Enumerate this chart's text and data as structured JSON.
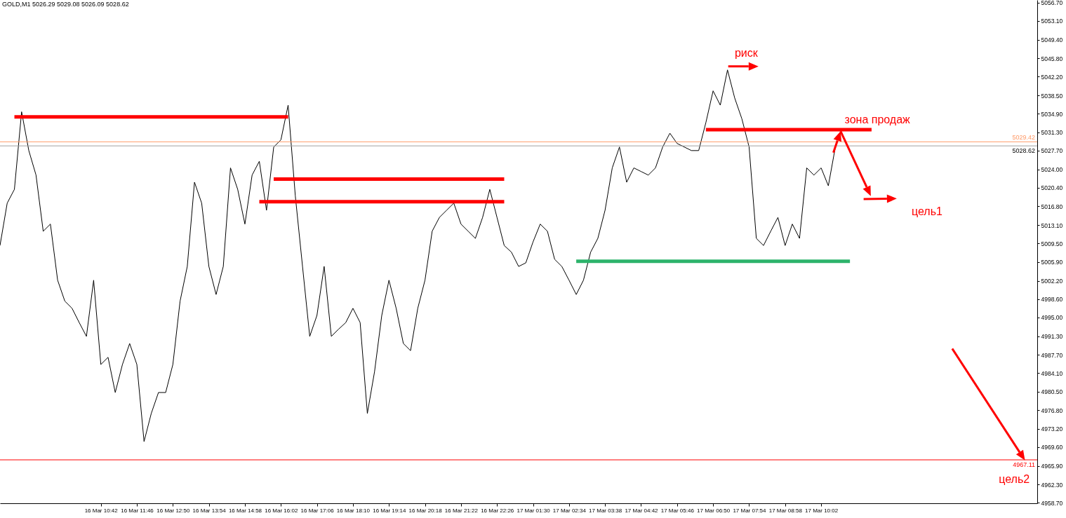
{
  "chart_data": {
    "type": "line",
    "title": "GOLD,M1  5026.29 5029.08 5026.09 5028.62",
    "categories": [
      null,
      null,
      null,
      null,
      null,
      null,
      null,
      null,
      null,
      null,
      null,
      null,
      null,
      null,
      "16 Mar 10:42",
      null,
      null,
      null,
      null,
      "16 Mar 11:46",
      null,
      null,
      null,
      null,
      "16 Mar 12:50",
      null,
      null,
      null,
      null,
      "16 Mar 13:54",
      null,
      null,
      null,
      null,
      "16 Mar 14:58",
      null,
      null,
      null,
      null,
      "16 Mar 16:02",
      null,
      null,
      null,
      null,
      "16 Mar 17:06",
      null,
      null,
      null,
      null,
      "16 Mar 18:10",
      null,
      null,
      null,
      null,
      "16 Mar 19:14",
      null,
      null,
      null,
      null,
      "16 Mar 20:18",
      null,
      null,
      null,
      null,
      "16 Mar 21:22",
      null,
      null,
      null,
      null,
      "16 Mar 22:26",
      null,
      null,
      null,
      null,
      "17 Mar 01:30",
      null,
      null,
      null,
      null,
      "17 Mar 02:34",
      null,
      null,
      null,
      null,
      "17 Mar 03:38",
      null,
      null,
      null,
      null,
      "17 Mar 04:42",
      null,
      null,
      null,
      null,
      "17 Mar 05:46",
      null,
      null,
      null,
      null,
      "17 Mar 06:50",
      null,
      null,
      null,
      null,
      "17 Mar 07:54",
      null,
      null,
      null,
      null,
      "17 Mar 08:58",
      null,
      null,
      null,
      null,
      "17 Mar 10:02",
      null,
      null,
      null,
      null,
      null,
      null,
      null,
      null,
      null,
      null,
      null,
      null,
      null,
      null,
      null,
      null,
      null,
      null,
      null,
      null,
      null,
      null,
      null,
      null,
      null,
      null,
      null,
      null,
      null,
      null
    ],
    "ylim": [
      4958.6,
      5057.2
    ],
    "yticks": [
      {
        "value": 5056.7,
        "label": "5056.70"
      },
      {
        "value": 5053.1,
        "label": "5053.10"
      },
      {
        "value": 5049.4,
        "label": "5049.40"
      },
      {
        "value": 5045.8,
        "label": "5045.80"
      },
      {
        "value": 5042.2,
        "label": "5042.20"
      },
      {
        "value": 5038.5,
        "label": "5038.50"
      },
      {
        "value": 5034.9,
        "label": "5034.90"
      },
      {
        "value": 5031.3,
        "label": "5031.30"
      },
      {
        "value": 5027.7,
        "label": "5027.70"
      },
      {
        "value": 5024,
        "label": "5024.00"
      },
      {
        "value": 5020.4,
        "label": "5020.40"
      },
      {
        "value": 5016.8,
        "label": "5016.80"
      },
      {
        "value": 5013.1,
        "label": "5013.10"
      },
      {
        "value": 5009.5,
        "label": "5009.50"
      },
      {
        "value": 5005.9,
        "label": "5005.90"
      },
      {
        "value": 5002.2,
        "label": "5002.20"
      },
      {
        "value": 4998.6,
        "label": "4998.60"
      },
      {
        "value": 4995,
        "label": "4995.00"
      },
      {
        "value": 4991.3,
        "label": "4991.30"
      },
      {
        "value": 4987.7,
        "label": "4987.70"
      },
      {
        "value": 4984.1,
        "label": "4984.10"
      },
      {
        "value": 4980.5,
        "label": "4980.50"
      },
      {
        "value": 4976.8,
        "label": "4976.80"
      },
      {
        "value": 4973.2,
        "label": "4973.20"
      },
      {
        "value": 4969.6,
        "label": "4969.60"
      },
      {
        "value": 4965.9,
        "label": "4965.90"
      },
      {
        "value": 4962.3,
        "label": "4962.30"
      },
      {
        "value": 4958.7,
        "label": "4958.70"
      }
    ],
    "series": [
      {
        "color": "#000000",
        "values": [
          5009.1,
          5017.4,
          5020.1,
          5035.3,
          5027.7,
          5022.9,
          5011.9,
          5013.3,
          5002.3,
          4998.2,
          4996.8,
          4994.0,
          4991.3,
          5002.3,
          4985.8,
          4987.2,
          4980.3,
          4985.8,
          4989.9,
          4985.8,
          4970.7,
          4976.2,
          4980.3,
          4980.3,
          4985.8,
          4998.2,
          5005.0,
          5021.5,
          5017.4,
          5005.0,
          4999.5,
          5005.0,
          5024.3,
          5020.1,
          5013.3,
          5022.9,
          5025.6,
          5016.0,
          5028.4,
          5029.8,
          5036.6,
          5018.8,
          5005.0,
          4991.3,
          4995.4,
          5005.0,
          4991.3,
          4992.7,
          4994.0,
          4996.8,
          4994.0,
          4976.2,
          4984.4,
          4995.4,
          5002.3,
          4996.8,
          4989.9,
          4988.5,
          4996.8,
          5002.3,
          5011.9,
          5014.6,
          5016.0,
          5017.4,
          5013.3,
          5011.9,
          5010.5,
          5014.6,
          5020.1,
          5014.6,
          5009.1,
          5007.8,
          5005.0,
          5005.7,
          5009.8,
          5013.3,
          5011.9,
          5006.4,
          5005.0,
          5002.3,
          4999.5,
          5002.3,
          5007.8,
          5010.5,
          5016.0,
          5024.3,
          5028.4,
          5021.5,
          5024.3,
          5023.6,
          5022.9,
          5024.3,
          5028.4,
          5031.1,
          5029.1,
          5028.4,
          5027.7,
          5027.7,
          5033.2,
          5039.4,
          5036.6,
          5043.5,
          5038.0,
          5033.9,
          5028.4,
          5010.5,
          5009.1,
          5011.9,
          5014.6,
          5009.1,
          5013.3,
          5010.5,
          5024.3,
          5022.9,
          5024.3,
          5020.8,
          5028.6,
          null,
          null,
          null,
          null,
          null,
          null,
          null,
          null,
          null,
          null,
          null,
          null,
          null,
          null,
          null,
          null,
          null,
          null,
          null,
          null,
          null,
          null,
          null,
          null,
          null,
          null,
          null,
          null
        ]
      },
      {
        "type": "line",
        "color": "#ff0000",
        "values": [
          null,
          null,
          5034.3,
          5034.3,
          5034.3,
          5034.3,
          5034.3,
          5034.3,
          5034.3,
          5034.3,
          5034.3,
          5034.3,
          5034.3,
          5034.3,
          5034.3,
          5034.3,
          5034.3,
          5034.3,
          5034.3,
          5034.3,
          5034.3,
          5034.3,
          5034.3,
          5034.3,
          5034.3,
          5034.3,
          5034.3,
          5034.3,
          5034.3,
          5034.3,
          5034.3,
          5034.3,
          5034.3,
          5034.3,
          5034.3,
          5034.3,
          5034.3,
          5034.3,
          5034.3,
          5034.3,
          5034.3,
          null,
          null,
          null,
          null,
          null,
          null,
          null,
          null,
          null,
          null,
          null,
          null,
          null,
          null,
          null,
          null,
          null,
          null,
          null,
          null,
          null,
          null,
          null,
          null,
          null,
          null,
          null,
          null,
          null,
          null,
          null,
          null,
          null,
          null,
          null,
          null,
          null,
          null,
          null,
          null,
          null,
          null,
          null,
          null,
          null,
          null,
          null,
          null,
          null,
          null,
          null,
          null,
          null,
          null,
          null,
          null,
          null,
          null,
          null,
          null,
          null,
          null,
          null,
          null,
          null,
          null,
          null,
          null,
          null,
          null,
          null,
          null,
          null,
          null,
          null,
          null,
          null,
          null,
          null,
          null,
          null,
          null,
          null,
          null,
          null,
          null,
          null,
          null,
          null,
          null,
          null,
          null,
          null,
          null,
          null,
          null,
          null,
          null,
          null,
          null,
          null,
          null,
          null,
          null
        ]
      },
      {
        "type": "line",
        "color": "#ff0000",
        "values": [
          null,
          null,
          null,
          null,
          null,
          null,
          null,
          null,
          null,
          null,
          null,
          null,
          null,
          null,
          null,
          null,
          null,
          null,
          null,
          null,
          null,
          null,
          null,
          null,
          null,
          null,
          null,
          null,
          null,
          null,
          null,
          null,
          null,
          null,
          null,
          null,
          null,
          null,
          5022.1,
          5022.1,
          5022.1,
          5022.1,
          5022.1,
          5022.1,
          5022.1,
          5022.1,
          5022.1,
          5022.1,
          5022.1,
          5022.1,
          5022.1,
          5022.1,
          5022.1,
          5022.1,
          5022.1,
          5022.1,
          5022.1,
          5022.1,
          5022.1,
          5022.1,
          5022.1,
          5022.1,
          5022.1,
          5022.1,
          5022.1,
          5022.1,
          5022.1,
          5022.1,
          5022.1,
          5022.1,
          5022.1,
          null,
          null,
          null,
          null,
          null,
          null,
          null,
          null,
          null,
          null,
          null,
          null,
          null,
          null,
          null,
          null,
          null,
          null,
          null,
          null,
          null,
          null,
          null,
          null,
          null,
          null,
          null,
          null,
          null,
          null,
          null,
          null,
          null,
          null,
          null,
          null,
          null,
          null,
          null,
          null,
          null,
          null,
          null,
          null,
          null,
          null,
          null,
          null,
          null,
          null,
          null,
          null,
          null,
          null,
          null,
          null,
          null,
          null,
          null,
          null,
          null,
          null,
          null,
          null,
          null,
          null,
          null,
          null,
          null,
          null,
          null,
          null,
          null,
          null
        ]
      },
      {
        "type": "line",
        "color": "#ff0000",
        "values": [
          null,
          null,
          null,
          null,
          null,
          null,
          null,
          null,
          null,
          null,
          null,
          null,
          null,
          null,
          null,
          null,
          null,
          null,
          null,
          null,
          null,
          null,
          null,
          null,
          null,
          null,
          null,
          null,
          null,
          null,
          null,
          null,
          null,
          null,
          null,
          null,
          5017.7,
          5017.7,
          5017.7,
          5017.7,
          5017.7,
          5017.7,
          5017.7,
          5017.7,
          5017.7,
          5017.7,
          5017.7,
          5017.7,
          5017.7,
          5017.7,
          5017.7,
          5017.7,
          5017.7,
          5017.7,
          5017.7,
          5017.7,
          5017.7,
          5017.7,
          5017.7,
          5017.7,
          5017.7,
          5017.7,
          5017.7,
          5017.7,
          5017.7,
          5017.7,
          5017.7,
          5017.7,
          5017.7,
          5017.7,
          5017.7,
          null,
          null,
          null,
          null,
          null,
          null,
          null,
          null,
          null,
          null,
          null,
          null,
          null,
          null,
          null,
          null,
          null,
          null,
          null,
          null,
          null,
          null,
          null,
          null,
          null,
          null,
          null,
          null,
          null,
          null,
          null,
          null,
          null,
          null,
          null,
          null,
          null,
          null,
          null,
          null,
          null,
          null,
          null,
          null,
          null,
          null,
          null,
          null,
          null,
          null,
          null,
          null,
          null,
          null,
          null,
          null,
          null,
          null,
          null,
          null,
          null,
          null,
          null,
          null,
          null,
          null,
          null,
          null,
          null,
          null,
          null,
          null,
          null,
          null
        ]
      },
      {
        "type": "line",
        "color": "#ff0000",
        "values": [
          null,
          null,
          null,
          null,
          null,
          null,
          null,
          null,
          null,
          null,
          null,
          null,
          null,
          null,
          null,
          null,
          null,
          null,
          null,
          null,
          null,
          null,
          null,
          null,
          null,
          null,
          null,
          null,
          null,
          null,
          null,
          null,
          null,
          null,
          null,
          null,
          null,
          null,
          null,
          null,
          null,
          null,
          null,
          null,
          null,
          null,
          null,
          null,
          null,
          null,
          null,
          null,
          null,
          null,
          null,
          null,
          null,
          null,
          null,
          null,
          null,
          null,
          null,
          null,
          null,
          null,
          null,
          null,
          null,
          null,
          null,
          null,
          null,
          null,
          null,
          null,
          null,
          null,
          null,
          null,
          null,
          null,
          null,
          null,
          null,
          null,
          null,
          null,
          null,
          null,
          null,
          null,
          null,
          null,
          null,
          null,
          null,
          null,
          5031.8,
          5031.8,
          5031.8,
          5031.8,
          5031.8,
          5031.8,
          5031.8,
          5031.8,
          5031.8,
          5031.8,
          5031.8,
          5031.8,
          5031.8,
          5031.8,
          5031.8,
          5031.8,
          5031.8,
          5031.8,
          5031.8,
          5031.8,
          5031.8,
          5031.8,
          5031.8,
          5031.8,
          null,
          null,
          null,
          null,
          null,
          null,
          null,
          null,
          null,
          null,
          null,
          null,
          null,
          null,
          null,
          null,
          null,
          null,
          null,
          null,
          null,
          null,
          null
        ]
      },
      {
        "type": "line",
        "color": "#2db36b",
        "values": [
          null,
          null,
          null,
          null,
          null,
          null,
          null,
          null,
          null,
          null,
          null,
          null,
          null,
          null,
          null,
          null,
          null,
          null,
          null,
          null,
          null,
          null,
          null,
          null,
          null,
          null,
          null,
          null,
          null,
          null,
          null,
          null,
          null,
          null,
          null,
          null,
          null,
          null,
          null,
          null,
          null,
          null,
          null,
          null,
          null,
          null,
          null,
          null,
          null,
          null,
          null,
          null,
          null,
          null,
          null,
          null,
          null,
          null,
          null,
          null,
          null,
          null,
          null,
          null,
          null,
          null,
          null,
          null,
          null,
          null,
          null,
          null,
          null,
          null,
          null,
          null,
          null,
          null,
          null,
          null,
          5006.0,
          5006.0,
          5006.0,
          5006.0,
          5006.0,
          5006.0,
          5006.0,
          5006.0,
          5006.0,
          5006.0,
          5006.0,
          5006.0,
          5006.0,
          5006.0,
          5006.0,
          5006.0,
          5006.0,
          5006.0,
          5006.0,
          5006.0,
          5006.0,
          5006.0,
          5006.0,
          5006.0,
          5006.0,
          5006.0,
          5006.0,
          5006.0,
          5006.0,
          5006.0,
          5006.0,
          5006.0,
          5006.0,
          5006.0,
          5006.0,
          5006.0,
          5006.0,
          5006.0,
          5006.0,
          null,
          null,
          null,
          null,
          null,
          null,
          null,
          null,
          null,
          null,
          null,
          null,
          null,
          null,
          null,
          null,
          null,
          null,
          null,
          null,
          null,
          null,
          null,
          null,
          null,
          null
        ]
      }
    ],
    "ref_lines": [
      {
        "axis": "y",
        "value": 5029.42,
        "label": "5029.42",
        "color": "#ff9966"
      },
      {
        "axis": "y",
        "value": 5028.62,
        "label": "5028.62",
        "color": "#a0a0a0"
      },
      {
        "axis": "y",
        "value": 4967.11,
        "label": "4967.11",
        "color": "#ff0000"
      }
    ],
    "annotations": [
      "риск",
      "зона продаж",
      "цель1",
      "цель2"
    ]
  }
}
